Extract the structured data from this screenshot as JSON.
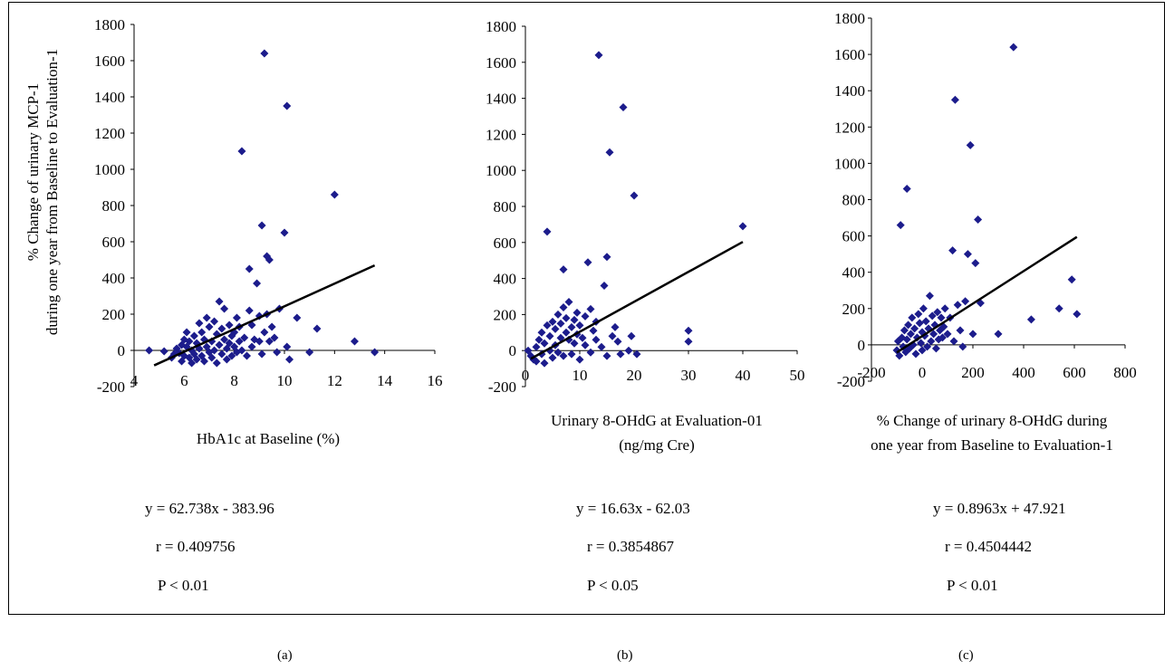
{
  "y_axis_label": {
    "line1": "% Change of urinary MCP-1",
    "line2": "during one year from Baseline to Evaluation-1"
  },
  "chart_data": [
    {
      "type": "scatter",
      "panel": "(a)",
      "xlabel": "HbA1c at Baseline (%)",
      "xlabel2": "",
      "xlim": [
        4,
        16
      ],
      "ylim": [
        -200,
        1800
      ],
      "x_ticks": [
        "4",
        "6",
        "8",
        "10",
        "12",
        "14",
        "16"
      ],
      "y_ticks": [
        "-200",
        "0",
        "200",
        "400",
        "600",
        "800",
        "1000",
        "1200",
        "1400",
        "1600",
        "1800"
      ],
      "equation": "y = 62.738x - 383.96",
      "r": "r = 0.409756",
      "p": "P < 0.01",
      "trend": {
        "slope": 62.738,
        "intercept": -383.96,
        "x_range": [
          4.8,
          13.6
        ]
      },
      "marker_color": "#1c1c8c",
      "points": [
        [
          4.6,
          0
        ],
        [
          5.2,
          -5
        ],
        [
          5.5,
          -40
        ],
        [
          5.6,
          -20
        ],
        [
          5.7,
          10
        ],
        [
          5.8,
          -15
        ],
        [
          5.9,
          30
        ],
        [
          5.9,
          -60
        ],
        [
          6.0,
          60
        ],
        [
          6.0,
          -30
        ],
        [
          6.1,
          100
        ],
        [
          6.1,
          20
        ],
        [
          6.2,
          -40
        ],
        [
          6.2,
          50
        ],
        [
          6.3,
          0
        ],
        [
          6.3,
          -70
        ],
        [
          6.4,
          80
        ],
        [
          6.4,
          -20
        ],
        [
          6.5,
          40
        ],
        [
          6.5,
          -50
        ],
        [
          6.6,
          150
        ],
        [
          6.6,
          10
        ],
        [
          6.7,
          -30
        ],
        [
          6.7,
          100
        ],
        [
          6.8,
          60
        ],
        [
          6.8,
          -60
        ],
        [
          6.9,
          180
        ],
        [
          6.9,
          20
        ],
        [
          7.0,
          -10
        ],
        [
          7.0,
          130
        ],
        [
          7.1,
          50
        ],
        [
          7.1,
          -40
        ],
        [
          7.2,
          160
        ],
        [
          7.2,
          0
        ],
        [
          7.3,
          90
        ],
        [
          7.3,
          -70
        ],
        [
          7.4,
          270
        ],
        [
          7.4,
          30
        ],
        [
          7.5,
          -20
        ],
        [
          7.5,
          120
        ],
        [
          7.6,
          60
        ],
        [
          7.6,
          230
        ],
        [
          7.7,
          10
        ],
        [
          7.7,
          -50
        ],
        [
          7.8,
          140
        ],
        [
          7.8,
          40
        ],
        [
          7.9,
          80
        ],
        [
          7.9,
          -30
        ],
        [
          8.0,
          100
        ],
        [
          8.0,
          20
        ],
        [
          8.1,
          -10
        ],
        [
          8.1,
          180
        ],
        [
          8.2,
          130
        ],
        [
          8.2,
          50
        ],
        [
          8.3,
          1100
        ],
        [
          8.3,
          0
        ],
        [
          8.4,
          70
        ],
        [
          8.5,
          -30
        ],
        [
          8.6,
          220
        ],
        [
          8.6,
          450
        ],
        [
          8.7,
          140
        ],
        [
          8.7,
          20
        ],
        [
          8.8,
          60
        ],
        [
          8.9,
          370
        ],
        [
          9.0,
          190
        ],
        [
          9.0,
          50
        ],
        [
          9.1,
          690
        ],
        [
          9.1,
          -20
        ],
        [
          9.2,
          1640
        ],
        [
          9.2,
          100
        ],
        [
          9.3,
          520
        ],
        [
          9.3,
          200
        ],
        [
          9.4,
          500
        ],
        [
          9.4,
          50
        ],
        [
          9.5,
          130
        ],
        [
          9.6,
          70
        ],
        [
          9.7,
          -10
        ],
        [
          9.8,
          230
        ],
        [
          10.0,
          650
        ],
        [
          10.1,
          1350
        ],
        [
          10.1,
          20
        ],
        [
          10.2,
          -50
        ],
        [
          10.5,
          180
        ],
        [
          11.0,
          -10
        ],
        [
          11.3,
          120
        ],
        [
          12.0,
          860
        ],
        [
          12.8,
          50
        ],
        [
          13.6,
          -10
        ]
      ]
    },
    {
      "type": "scatter",
      "panel": "(b)",
      "xlabel": "Urinary 8-OHdG at Evaluation-01",
      "xlabel2": "(ng/mg Cre)",
      "xlim": [
        0,
        50
      ],
      "ylim": [
        -200,
        1800
      ],
      "x_ticks": [
        "0",
        "10",
        "20",
        "30",
        "40",
        "50"
      ],
      "y_ticks": [
        "-200",
        "0",
        "200",
        "400",
        "600",
        "800",
        "1000",
        "1200",
        "1400",
        "1600",
        "1800"
      ],
      "equation": "y = 16.63x - 62.03",
      "r": "r = 0.3854867",
      "p": "P < 0.05",
      "trend": {
        "slope": 16.63,
        "intercept": -62.03,
        "x_range": [
          1,
          40
        ]
      },
      "marker_color": "#1c1c8c",
      "points": [
        [
          0.5,
          0
        ],
        [
          1.0,
          -30
        ],
        [
          1.5,
          -50
        ],
        [
          2.0,
          20
        ],
        [
          2.0,
          -60
        ],
        [
          2.5,
          60
        ],
        [
          3.0,
          -20
        ],
        [
          3.0,
          100
        ],
        [
          3.5,
          40
        ],
        [
          3.5,
          -70
        ],
        [
          4.0,
          140
        ],
        [
          4.0,
          660
        ],
        [
          4.5,
          0
        ],
        [
          4.5,
          80
        ],
        [
          5.0,
          -40
        ],
        [
          5.0,
          160
        ],
        [
          5.5,
          120
        ],
        [
          5.5,
          30
        ],
        [
          6.0,
          200
        ],
        [
          6.0,
          -10
        ],
        [
          6.5,
          70
        ],
        [
          6.5,
          150
        ],
        [
          7.0,
          240
        ],
        [
          7.0,
          -30
        ],
        [
          7.0,
          450
        ],
        [
          7.5,
          100
        ],
        [
          7.5,
          180
        ],
        [
          8.0,
          60
        ],
        [
          8.0,
          270
        ],
        [
          8.5,
          130
        ],
        [
          8.5,
          -20
        ],
        [
          9.0,
          170
        ],
        [
          9.0,
          40
        ],
        [
          9.5,
          90
        ],
        [
          9.5,
          210
        ],
        [
          10.0,
          140
        ],
        [
          10.0,
          -50
        ],
        [
          10.5,
          70
        ],
        [
          11.0,
          190
        ],
        [
          11.0,
          30
        ],
        [
          11.5,
          490
        ],
        [
          12.0,
          230
        ],
        [
          12.0,
          -10
        ],
        [
          12.5,
          110
        ],
        [
          13.0,
          160
        ],
        [
          13.0,
          60
        ],
        [
          13.5,
          1640
        ],
        [
          14.0,
          20
        ],
        [
          14.5,
          360
        ],
        [
          15.0,
          520
        ],
        [
          15.0,
          -30
        ],
        [
          15.5,
          1100
        ],
        [
          16.0,
          80
        ],
        [
          16.5,
          130
        ],
        [
          17.0,
          50
        ],
        [
          17.5,
          -20
        ],
        [
          18.0,
          1350
        ],
        [
          19.0,
          0
        ],
        [
          19.5,
          80
        ],
        [
          20.0,
          860
        ],
        [
          20.5,
          -20
        ],
        [
          30.0,
          110
        ],
        [
          30.0,
          50
        ],
        [
          40.0,
          690
        ]
      ]
    },
    {
      "type": "scatter",
      "panel": "(c)",
      "xlabel": "% Change of urinary 8-OHdG during",
      "xlabel2": "one year from Baseline to Evaluation-1",
      "xlim": [
        -200,
        800
      ],
      "ylim": [
        -200,
        1800
      ],
      "x_ticks": [
        "-200",
        "0",
        "200",
        "400",
        "600",
        "800"
      ],
      "y_ticks": [
        "-200",
        "0",
        "200",
        "400",
        "600",
        "800",
        "1000",
        "1200",
        "1400",
        "1600",
        "1800"
      ],
      "equation": "y = 0.8963x + 47.921",
      "r": "r = 0.4504442",
      "p": "P < 0.01",
      "trend": {
        "slope": 0.8963,
        "intercept": 47.921,
        "x_range": [
          -100,
          610
        ]
      },
      "marker_color": "#1c1c8c",
      "points": [
        [
          -100,
          -30
        ],
        [
          -95,
          20
        ],
        [
          -90,
          -60
        ],
        [
          -85,
          660
        ],
        [
          -80,
          40
        ],
        [
          -75,
          -10
        ],
        [
          -70,
          80
        ],
        [
          -65,
          -40
        ],
        [
          -60,
          860
        ],
        [
          -60,
          30
        ],
        [
          -55,
          110
        ],
        [
          -50,
          -20
        ],
        [
          -45,
          60
        ],
        [
          -40,
          150
        ],
        [
          -35,
          0
        ],
        [
          -30,
          90
        ],
        [
          -25,
          -50
        ],
        [
          -20,
          40
        ],
        [
          -15,
          170
        ],
        [
          -10,
          120
        ],
        [
          -5,
          10
        ],
        [
          0,
          70
        ],
        [
          0,
          -30
        ],
        [
          5,
          200
        ],
        [
          10,
          50
        ],
        [
          15,
          130
        ],
        [
          20,
          -10
        ],
        [
          25,
          90
        ],
        [
          30,
          270
        ],
        [
          35,
          20
        ],
        [
          40,
          160
        ],
        [
          45,
          60
        ],
        [
          50,
          110
        ],
        [
          55,
          -20
        ],
        [
          60,
          180
        ],
        [
          65,
          30
        ],
        [
          70,
          80
        ],
        [
          75,
          150
        ],
        [
          80,
          40
        ],
        [
          85,
          100
        ],
        [
          90,
          200
        ],
        [
          100,
          60
        ],
        [
          110,
          150
        ],
        [
          120,
          520
        ],
        [
          125,
          20
        ],
        [
          130,
          1350
        ],
        [
          140,
          220
        ],
        [
          150,
          80
        ],
        [
          160,
          -10
        ],
        [
          170,
          240
        ],
        [
          180,
          500
        ],
        [
          190,
          1100
        ],
        [
          200,
          60
        ],
        [
          210,
          450
        ],
        [
          220,
          690
        ],
        [
          230,
          230
        ],
        [
          300,
          60
        ],
        [
          360,
          1640
        ],
        [
          430,
          140
        ],
        [
          540,
          200
        ],
        [
          590,
          360
        ],
        [
          610,
          170
        ]
      ]
    }
  ]
}
